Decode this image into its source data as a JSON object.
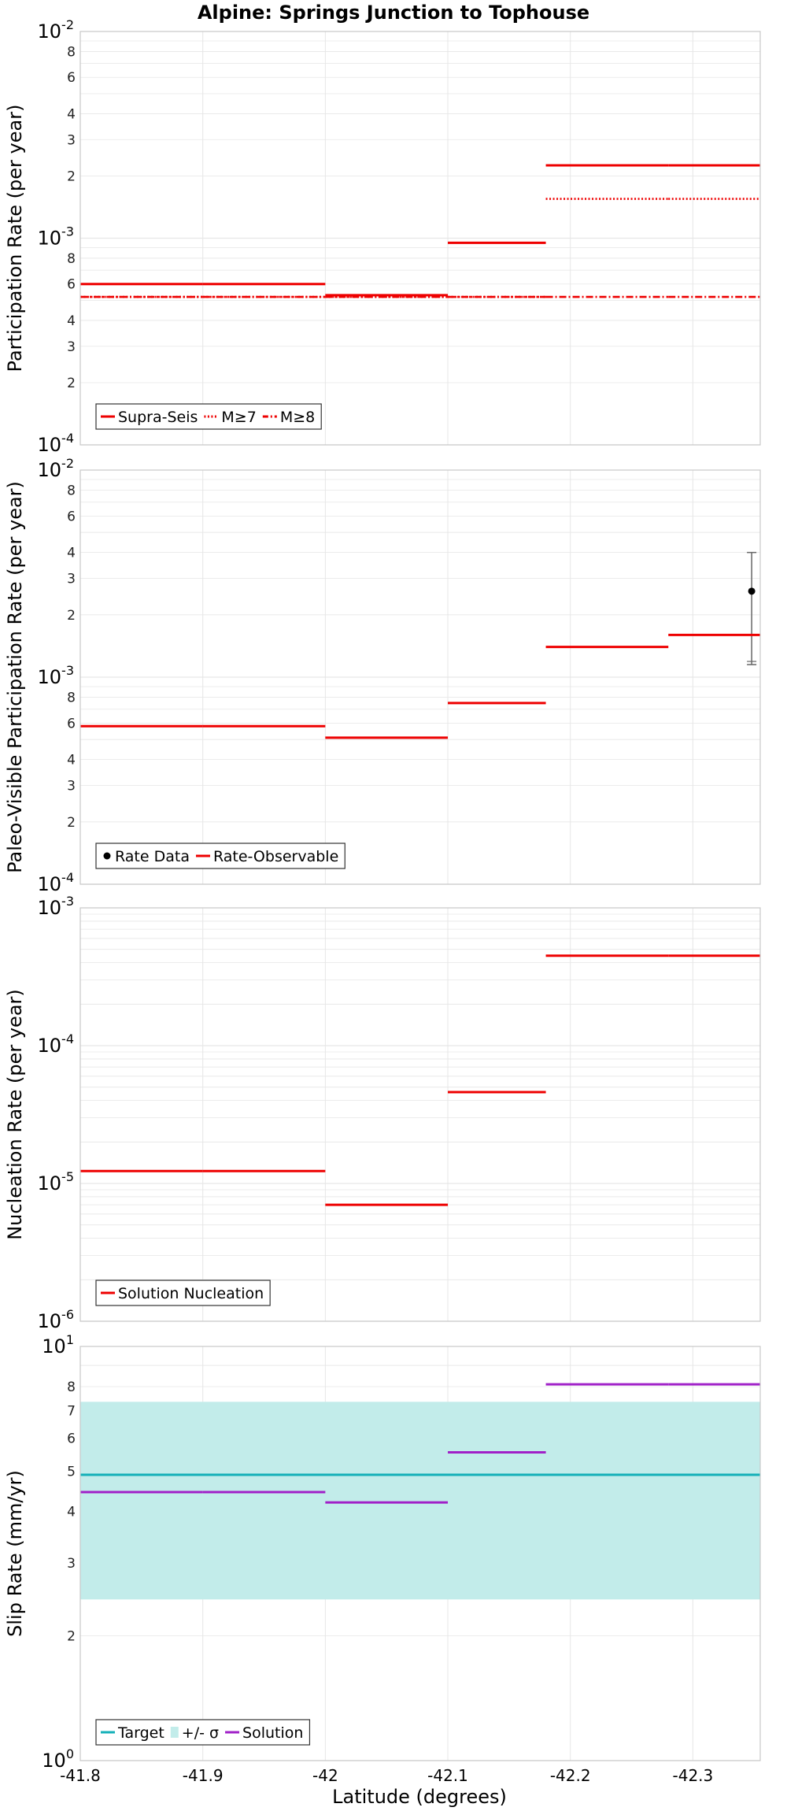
{
  "figure": {
    "title": "Alpine: Springs Junction to Tophouse",
    "xlabel": "Latitude (degrees)"
  },
  "colors": {
    "red": "#ee0000",
    "cyan": "#14b0b8",
    "band": "#c2ecea",
    "purple": "#a020c8",
    "gray": "#666666",
    "grid": "#e6e6e6",
    "frame": "#c8c8c8"
  },
  "chart_data": [
    {
      "type": "line",
      "panel": "participation",
      "ylabel": "Participation Rate (per year)",
      "yscale": "log",
      "ylim": [
        0.0001,
        0.01
      ],
      "xlim": [
        -41.8,
        -42.355
      ],
      "x_ticks": [
        -41.8,
        -41.9,
        -42,
        -42.1,
        -42.2,
        -42.3
      ],
      "x_tick_labels": [
        "-41.8",
        "-41.9",
        "-42",
        "-42.1",
        "-42.2",
        "-42.3"
      ],
      "y_major_ticks": [
        {
          "base": "10",
          "exp": "-4"
        },
        {
          "base": "10",
          "exp": "-3"
        },
        {
          "base": "10",
          "exp": "-2"
        }
      ],
      "y_minor_labels": [
        "2",
        "3",
        "4",
        "6",
        "8"
      ],
      "legend": "bottom-left",
      "series": [
        {
          "name": "Supra-Seis",
          "style": "solid",
          "color": "#ee0000",
          "segments": [
            [
              -41.8,
              -41.9,
              0.0006
            ],
            [
              -41.9,
              -42.0,
              0.0006
            ],
            [
              -42.0,
              -42.1,
              0.00053
            ],
            [
              -42.1,
              -42.18,
              0.00095
            ],
            [
              -42.18,
              -42.28,
              0.00225
            ],
            [
              -42.28,
              -42.355,
              0.00225
            ]
          ]
        },
        {
          "name": "M≥7",
          "style": "dotted",
          "color": "#ee0000",
          "segments": [
            [
              -41.8,
              -41.9,
              0.00052
            ],
            [
              -41.9,
              -42.0,
              0.00052
            ],
            [
              -42.0,
              -42.1,
              0.00052
            ],
            [
              -42.1,
              -42.18,
              0.00052
            ],
            [
              -42.18,
              -42.28,
              0.00155
            ],
            [
              -42.28,
              -42.355,
              0.00155
            ]
          ]
        },
        {
          "name": "M≥8",
          "style": "dashdot",
          "color": "#ee0000",
          "segments": [
            [
              -41.8,
              -41.9,
              0.00052
            ],
            [
              -41.9,
              -42.0,
              0.00052
            ],
            [
              -42.0,
              -42.1,
              0.00052
            ],
            [
              -42.1,
              -42.18,
              0.00052
            ],
            [
              -42.18,
              -42.28,
              0.00052
            ],
            [
              -42.28,
              -42.355,
              0.00052
            ]
          ]
        }
      ]
    },
    {
      "type": "line",
      "panel": "paleo",
      "ylabel": "Paleo-Visible Participation Rate (per year)",
      "yscale": "log",
      "ylim": [
        0.0001,
        0.01
      ],
      "xlim": [
        -41.8,
        -42.355
      ],
      "x_ticks": [
        -41.8,
        -41.9,
        -42,
        -42.1,
        -42.2,
        -42.3
      ],
      "y_major_ticks": [
        {
          "base": "10",
          "exp": "-4"
        },
        {
          "base": "10",
          "exp": "-3"
        },
        {
          "base": "10",
          "exp": "-2"
        }
      ],
      "y_minor_labels": [
        "2",
        "3",
        "4",
        "6",
        "8"
      ],
      "legend": "bottom-left",
      "series": [
        {
          "name": "Rate Data",
          "style": "point",
          "color": "#000000",
          "points": [
            {
              "x": -42.348,
              "y": 0.0026,
              "ylow": 0.00115,
              "yhigh": 0.004
            }
          ]
        },
        {
          "name": "Rate-Observable",
          "style": "solid",
          "color": "#ee0000",
          "segments": [
            [
              -41.8,
              -41.9,
              0.00058
            ],
            [
              -41.9,
              -42.0,
              0.00058
            ],
            [
              -42.0,
              -42.1,
              0.00051
            ],
            [
              -42.1,
              -42.18,
              0.00075
            ],
            [
              -42.18,
              -42.28,
              0.0014
            ],
            [
              -42.28,
              -42.355,
              0.0016
            ]
          ]
        }
      ]
    },
    {
      "type": "line",
      "panel": "nucleation",
      "ylabel": "Nucleation Rate (per year)",
      "yscale": "log",
      "ylim": [
        1e-06,
        0.001
      ],
      "xlim": [
        -41.8,
        -42.355
      ],
      "x_ticks": [
        -41.8,
        -41.9,
        -42,
        -42.1,
        -42.2,
        -42.3
      ],
      "y_major_ticks": [
        {
          "base": "10",
          "exp": "-6"
        },
        {
          "base": "10",
          "exp": "-5"
        },
        {
          "base": "10",
          "exp": "-4"
        },
        {
          "base": "10",
          "exp": "-3"
        }
      ],
      "y_minor_labels": [],
      "legend": "bottom-left",
      "series": [
        {
          "name": "Solution Nucleation",
          "style": "solid",
          "color": "#ee0000",
          "segments": [
            [
              -41.8,
              -41.9,
              1.23e-05
            ],
            [
              -41.9,
              -42.0,
              1.23e-05
            ],
            [
              -42.0,
              -42.1,
              7e-06
            ],
            [
              -42.1,
              -42.18,
              4.6e-05
            ],
            [
              -42.18,
              -42.28,
              0.00045
            ],
            [
              -42.28,
              -42.355,
              0.00045
            ]
          ]
        }
      ]
    },
    {
      "type": "line",
      "panel": "slip",
      "ylabel": "Slip Rate (mm/yr)",
      "yscale": "log",
      "ylim": [
        1,
        10
      ],
      "xlim": [
        -41.8,
        -42.355
      ],
      "x_ticks": [
        -41.8,
        -41.9,
        -42,
        -42.1,
        -42.2,
        -42.3
      ],
      "y_major_ticks": [
        {
          "base": "10",
          "exp": "0"
        },
        {
          "base": "10",
          "exp": "1"
        }
      ],
      "y_minor_labels": [
        "2",
        "3",
        "4",
        "5",
        "6",
        "7",
        "8"
      ],
      "legend": "bottom-left",
      "series": [
        {
          "name": "Target",
          "style": "solid",
          "color": "#14b0b8",
          "segments": [
            [
              -41.8,
              -42.355,
              4.9
            ]
          ]
        },
        {
          "name": "+/- σ",
          "style": "band",
          "color": "#c2ecea",
          "band": [
            [
              -41.8,
              -42.355,
              2.45,
              7.35
            ]
          ]
        },
        {
          "name": "Solution",
          "style": "solid",
          "color": "#a020c8",
          "segments": [
            [
              -41.8,
              -41.9,
              4.45
            ],
            [
              -41.9,
              -42.0,
              4.45
            ],
            [
              -42.0,
              -42.1,
              4.2
            ],
            [
              -42.1,
              -42.18,
              5.55
            ],
            [
              -42.18,
              -42.28,
              8.1
            ],
            [
              -42.28,
              -42.355,
              8.1
            ]
          ]
        }
      ]
    }
  ]
}
